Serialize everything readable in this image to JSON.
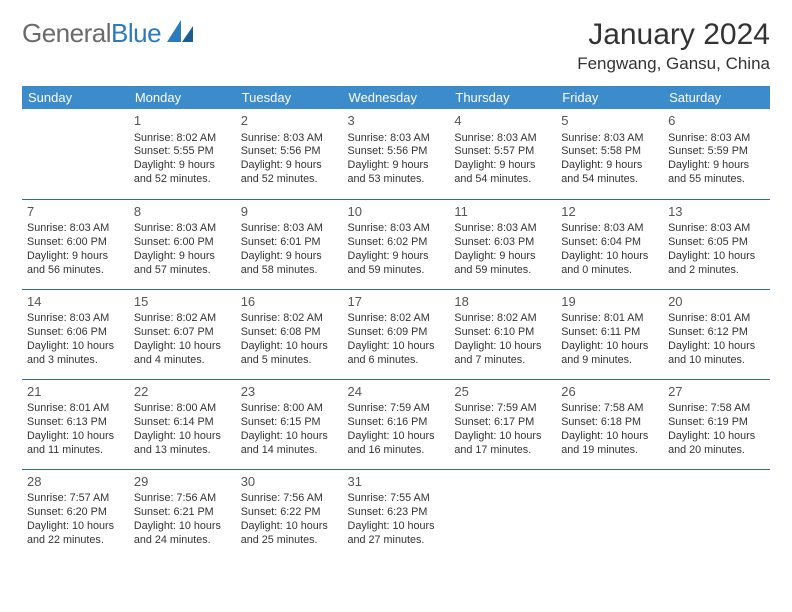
{
  "brand": {
    "part1": "General",
    "part2": "Blue"
  },
  "title": "January 2024",
  "location": "Fengwang, Gansu, China",
  "colors": {
    "header_bg": "#3c8bcb",
    "row_border": "#2f6aa0",
    "brand_gray": "#6b6b6b",
    "brand_blue": "#2b7bbd"
  },
  "weekdays": [
    "Sunday",
    "Monday",
    "Tuesday",
    "Wednesday",
    "Thursday",
    "Friday",
    "Saturday"
  ],
  "weeks": [
    [
      null,
      {
        "n": "1",
        "sr": "Sunrise: 8:02 AM",
        "ss": "Sunset: 5:55 PM",
        "d1": "Daylight: 9 hours",
        "d2": "and 52 minutes."
      },
      {
        "n": "2",
        "sr": "Sunrise: 8:03 AM",
        "ss": "Sunset: 5:56 PM",
        "d1": "Daylight: 9 hours",
        "d2": "and 52 minutes."
      },
      {
        "n": "3",
        "sr": "Sunrise: 8:03 AM",
        "ss": "Sunset: 5:56 PM",
        "d1": "Daylight: 9 hours",
        "d2": "and 53 minutes."
      },
      {
        "n": "4",
        "sr": "Sunrise: 8:03 AM",
        "ss": "Sunset: 5:57 PM",
        "d1": "Daylight: 9 hours",
        "d2": "and 54 minutes."
      },
      {
        "n": "5",
        "sr": "Sunrise: 8:03 AM",
        "ss": "Sunset: 5:58 PM",
        "d1": "Daylight: 9 hours",
        "d2": "and 54 minutes."
      },
      {
        "n": "6",
        "sr": "Sunrise: 8:03 AM",
        "ss": "Sunset: 5:59 PM",
        "d1": "Daylight: 9 hours",
        "d2": "and 55 minutes."
      }
    ],
    [
      {
        "n": "7",
        "sr": "Sunrise: 8:03 AM",
        "ss": "Sunset: 6:00 PM",
        "d1": "Daylight: 9 hours",
        "d2": "and 56 minutes."
      },
      {
        "n": "8",
        "sr": "Sunrise: 8:03 AM",
        "ss": "Sunset: 6:00 PM",
        "d1": "Daylight: 9 hours",
        "d2": "and 57 minutes."
      },
      {
        "n": "9",
        "sr": "Sunrise: 8:03 AM",
        "ss": "Sunset: 6:01 PM",
        "d1": "Daylight: 9 hours",
        "d2": "and 58 minutes."
      },
      {
        "n": "10",
        "sr": "Sunrise: 8:03 AM",
        "ss": "Sunset: 6:02 PM",
        "d1": "Daylight: 9 hours",
        "d2": "and 59 minutes."
      },
      {
        "n": "11",
        "sr": "Sunrise: 8:03 AM",
        "ss": "Sunset: 6:03 PM",
        "d1": "Daylight: 9 hours",
        "d2": "and 59 minutes."
      },
      {
        "n": "12",
        "sr": "Sunrise: 8:03 AM",
        "ss": "Sunset: 6:04 PM",
        "d1": "Daylight: 10 hours",
        "d2": "and 0 minutes."
      },
      {
        "n": "13",
        "sr": "Sunrise: 8:03 AM",
        "ss": "Sunset: 6:05 PM",
        "d1": "Daylight: 10 hours",
        "d2": "and 2 minutes."
      }
    ],
    [
      {
        "n": "14",
        "sr": "Sunrise: 8:03 AM",
        "ss": "Sunset: 6:06 PM",
        "d1": "Daylight: 10 hours",
        "d2": "and 3 minutes."
      },
      {
        "n": "15",
        "sr": "Sunrise: 8:02 AM",
        "ss": "Sunset: 6:07 PM",
        "d1": "Daylight: 10 hours",
        "d2": "and 4 minutes."
      },
      {
        "n": "16",
        "sr": "Sunrise: 8:02 AM",
        "ss": "Sunset: 6:08 PM",
        "d1": "Daylight: 10 hours",
        "d2": "and 5 minutes."
      },
      {
        "n": "17",
        "sr": "Sunrise: 8:02 AM",
        "ss": "Sunset: 6:09 PM",
        "d1": "Daylight: 10 hours",
        "d2": "and 6 minutes."
      },
      {
        "n": "18",
        "sr": "Sunrise: 8:02 AM",
        "ss": "Sunset: 6:10 PM",
        "d1": "Daylight: 10 hours",
        "d2": "and 7 minutes."
      },
      {
        "n": "19",
        "sr": "Sunrise: 8:01 AM",
        "ss": "Sunset: 6:11 PM",
        "d1": "Daylight: 10 hours",
        "d2": "and 9 minutes."
      },
      {
        "n": "20",
        "sr": "Sunrise: 8:01 AM",
        "ss": "Sunset: 6:12 PM",
        "d1": "Daylight: 10 hours",
        "d2": "and 10 minutes."
      }
    ],
    [
      {
        "n": "21",
        "sr": "Sunrise: 8:01 AM",
        "ss": "Sunset: 6:13 PM",
        "d1": "Daylight: 10 hours",
        "d2": "and 11 minutes."
      },
      {
        "n": "22",
        "sr": "Sunrise: 8:00 AM",
        "ss": "Sunset: 6:14 PM",
        "d1": "Daylight: 10 hours",
        "d2": "and 13 minutes."
      },
      {
        "n": "23",
        "sr": "Sunrise: 8:00 AM",
        "ss": "Sunset: 6:15 PM",
        "d1": "Daylight: 10 hours",
        "d2": "and 14 minutes."
      },
      {
        "n": "24",
        "sr": "Sunrise: 7:59 AM",
        "ss": "Sunset: 6:16 PM",
        "d1": "Daylight: 10 hours",
        "d2": "and 16 minutes."
      },
      {
        "n": "25",
        "sr": "Sunrise: 7:59 AM",
        "ss": "Sunset: 6:17 PM",
        "d1": "Daylight: 10 hours",
        "d2": "and 17 minutes."
      },
      {
        "n": "26",
        "sr": "Sunrise: 7:58 AM",
        "ss": "Sunset: 6:18 PM",
        "d1": "Daylight: 10 hours",
        "d2": "and 19 minutes."
      },
      {
        "n": "27",
        "sr": "Sunrise: 7:58 AM",
        "ss": "Sunset: 6:19 PM",
        "d1": "Daylight: 10 hours",
        "d2": "and 20 minutes."
      }
    ],
    [
      {
        "n": "28",
        "sr": "Sunrise: 7:57 AM",
        "ss": "Sunset: 6:20 PM",
        "d1": "Daylight: 10 hours",
        "d2": "and 22 minutes."
      },
      {
        "n": "29",
        "sr": "Sunrise: 7:56 AM",
        "ss": "Sunset: 6:21 PM",
        "d1": "Daylight: 10 hours",
        "d2": "and 24 minutes."
      },
      {
        "n": "30",
        "sr": "Sunrise: 7:56 AM",
        "ss": "Sunset: 6:22 PM",
        "d1": "Daylight: 10 hours",
        "d2": "and 25 minutes."
      },
      {
        "n": "31",
        "sr": "Sunrise: 7:55 AM",
        "ss": "Sunset: 6:23 PM",
        "d1": "Daylight: 10 hours",
        "d2": "and 27 minutes."
      },
      null,
      null,
      null
    ]
  ]
}
